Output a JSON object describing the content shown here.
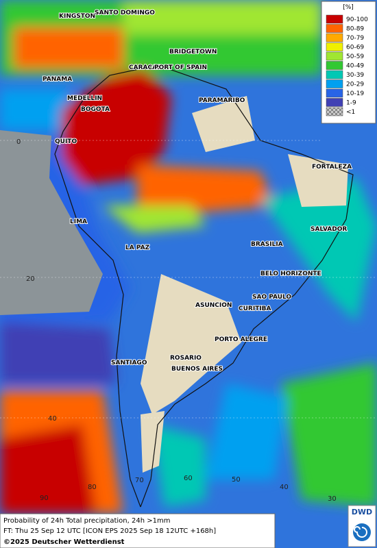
{
  "legend": {
    "title": "[%]",
    "entries": [
      {
        "label": "90-100",
        "color": "#c80000"
      },
      {
        "label": "80-89",
        "color": "#ff6400"
      },
      {
        "label": "70-79",
        "color": "#ffaa00"
      },
      {
        "label": "60-69",
        "color": "#f0f000"
      },
      {
        "label": "50-59",
        "color": "#a0e632"
      },
      {
        "label": "40-49",
        "color": "#32c832"
      },
      {
        "label": "30-39",
        "color": "#00c8b4"
      },
      {
        "label": "20-29",
        "color": "#00a0f0"
      },
      {
        "label": "10-19",
        "color": "#2864e6"
      },
      {
        "label": "1-9",
        "color": "#4040b4"
      },
      {
        "label": "<1",
        "color": "#a0a0a0"
      }
    ]
  },
  "cities": [
    "KINGSTON",
    "SANTO DOMINGO",
    "BRIDGETOWN",
    "PANAMA",
    "CARACAS",
    "PORT OF SPAIN",
    "MEDELLIN",
    "BOGOTA",
    "PARAMARIBO",
    "QUITO",
    "FORTALEZA",
    "LIMA",
    "SALVADOR",
    "LA PAZ",
    "BRASILIA",
    "BELO HORIZONTE",
    "SAO PAULO",
    "ASUNCION",
    "CURITIBA",
    "PORTO ALEGRE",
    "SANTIAGO",
    "ROSARIO",
    "BUENOS AIRES"
  ],
  "grid": {
    "latitude_labels": [
      0,
      20,
      40
    ],
    "longitude_labels": [
      90,
      80,
      70,
      60,
      50,
      40,
      30
    ]
  },
  "footer": {
    "line1": "Probability of 24h Total precipitation, 24h >1mm",
    "line2": "FT: Thu 25 Sep 12 UTC [ICON EPS 2025 Sep 18 12UTC +168h]",
    "line3": "©2025 Deutscher Wetterdienst"
  },
  "logo": "DWD"
}
